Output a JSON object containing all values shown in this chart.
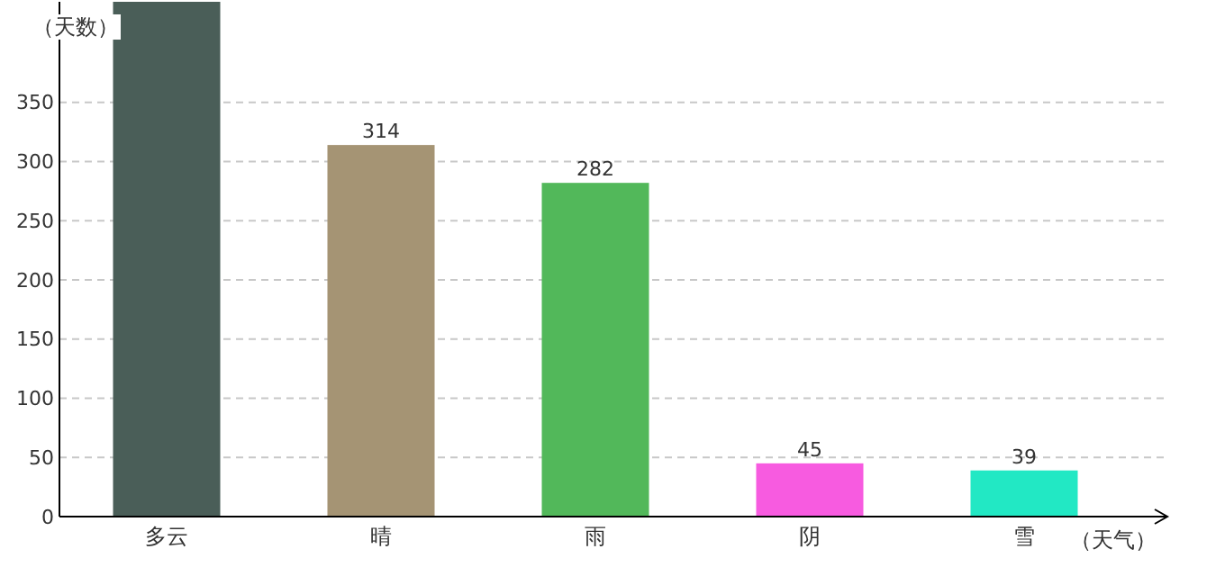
{
  "chart_data": {
    "type": "bar",
    "xlabel": "（天气）",
    "ylabel": "（天数）",
    "categories": [
      "多云",
      "晴",
      "雨",
      "阴",
      "雪"
    ],
    "values": [
      435,
      314,
      282,
      45,
      39
    ],
    "value_labels": [
      null,
      "314",
      "282",
      "45",
      "39"
    ],
    "colors": [
      "#4a5e58",
      "#a59474",
      "#52b85a",
      "#f75be0",
      "#22e8c4"
    ],
    "ylim": [
      0,
      435
    ],
    "yticks": [
      0,
      50,
      100,
      150,
      200,
      250,
      300,
      350
    ],
    "grid": "y"
  }
}
